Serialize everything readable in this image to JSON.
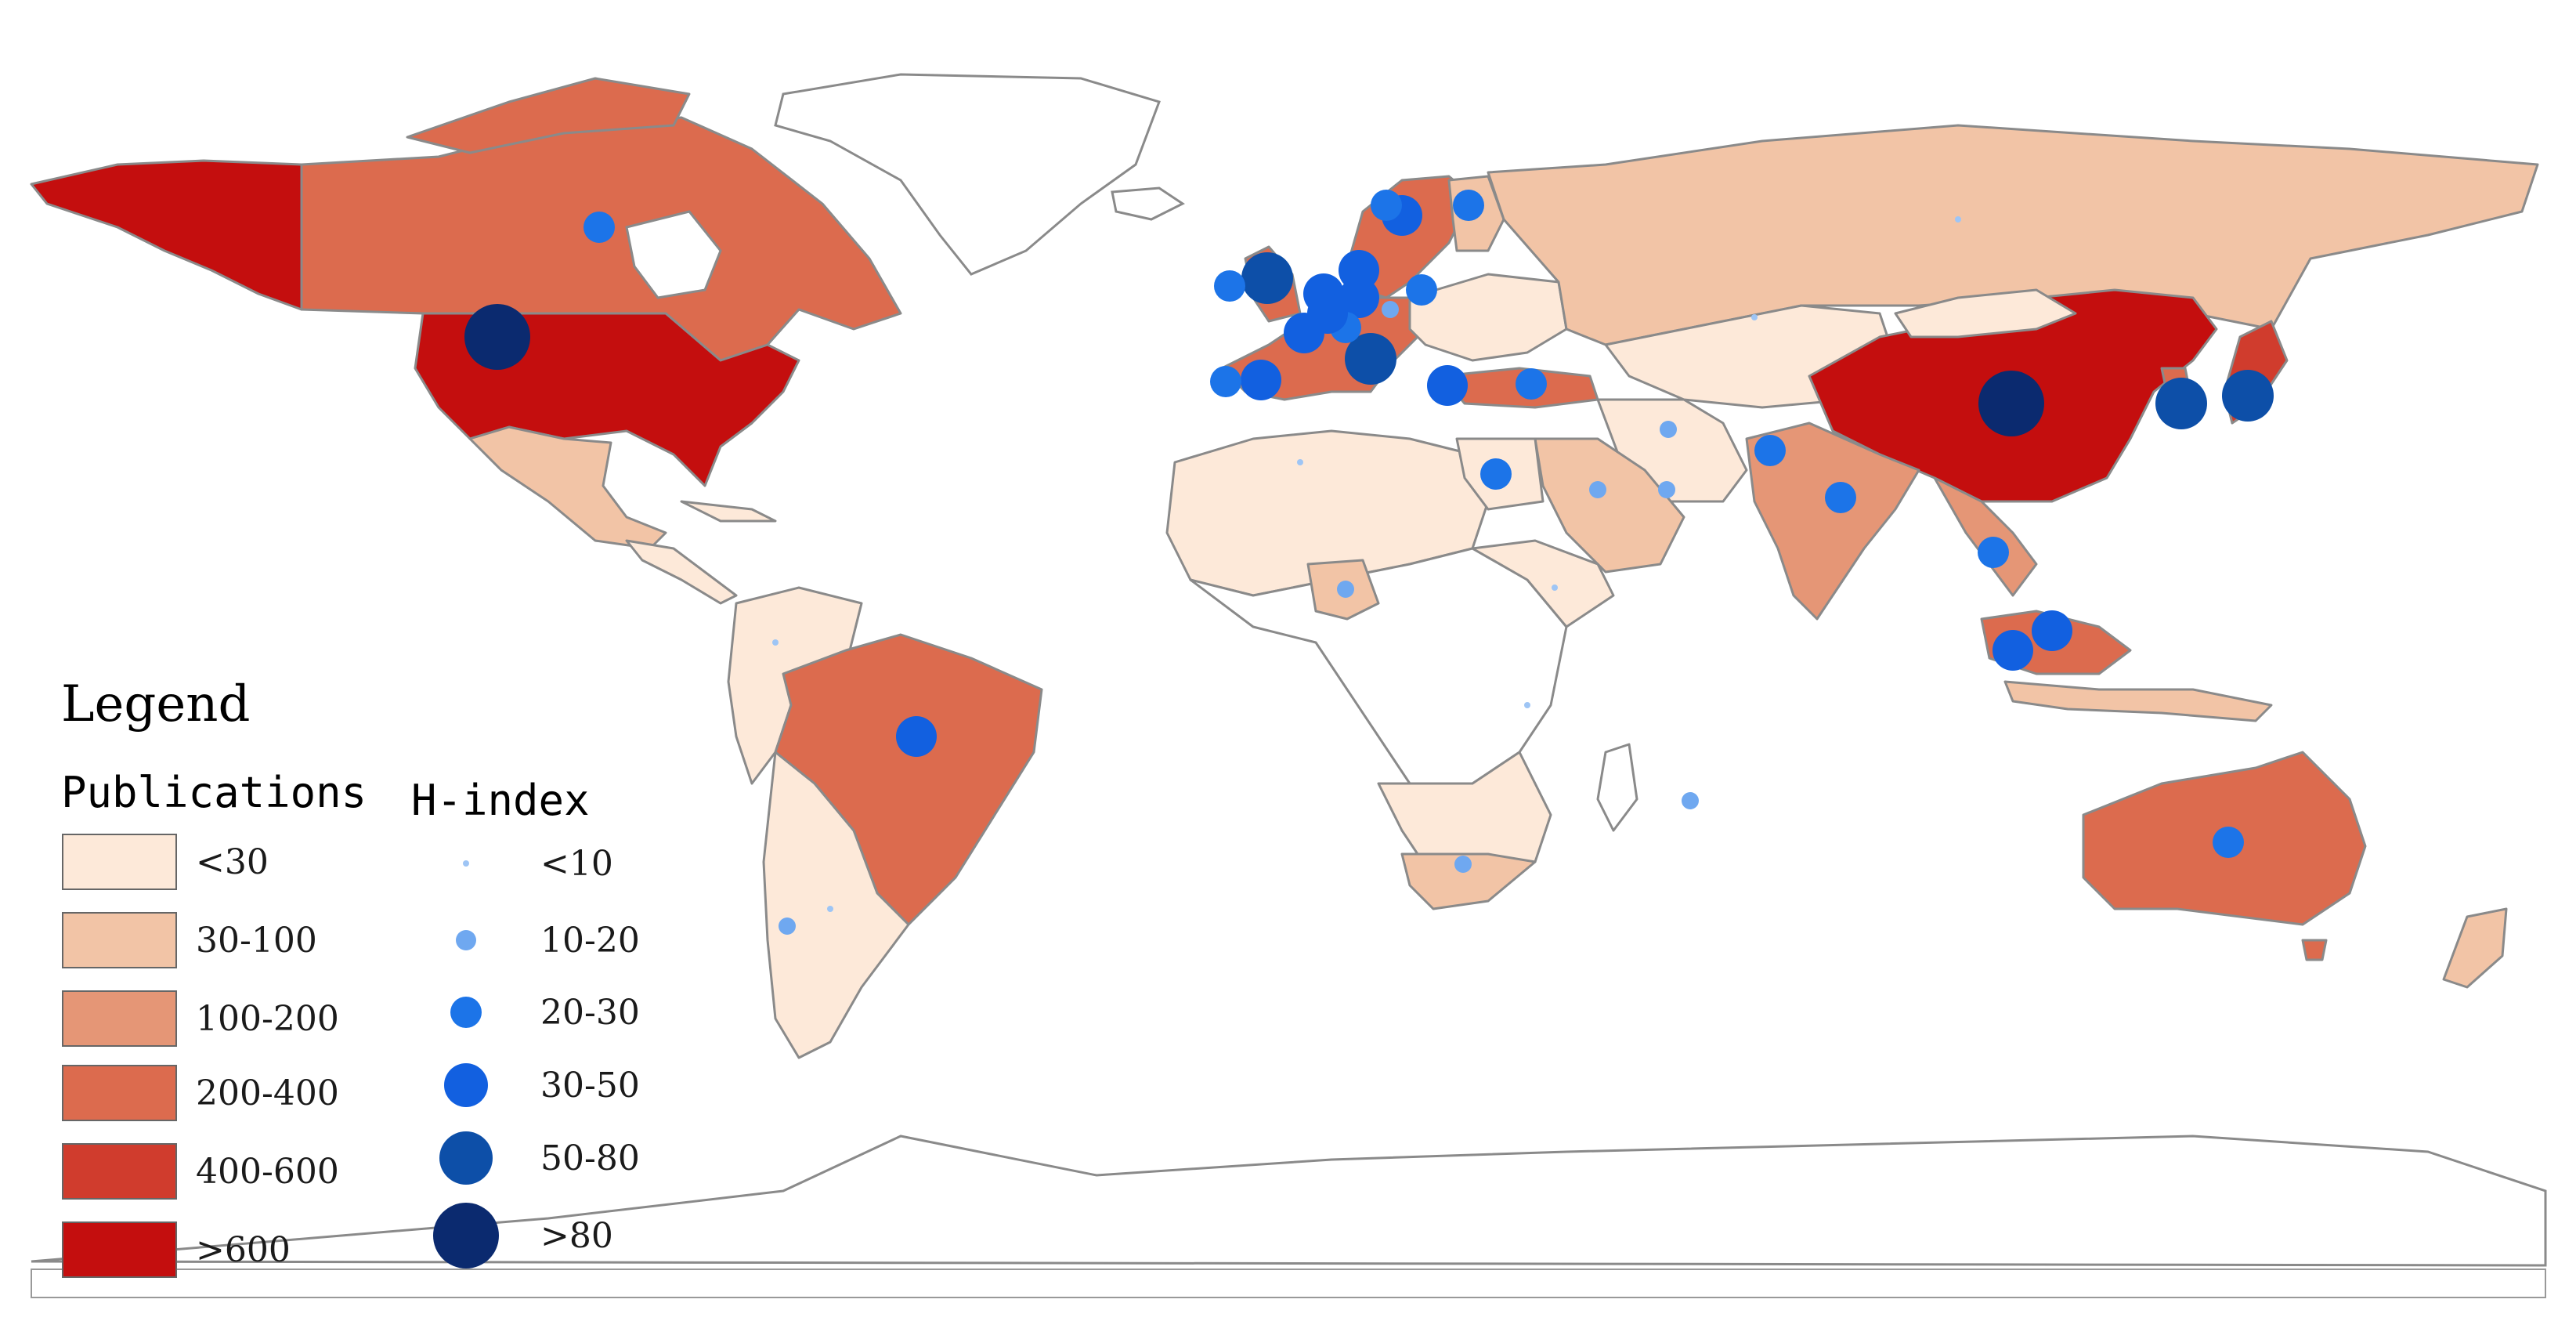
{
  "legend": {
    "title": "Legend",
    "publications_heading": "Publications",
    "hindex_heading": "H-index",
    "publication_classes": [
      {
        "label": "<30",
        "color": "#FDE9D9"
      },
      {
        "label": "30-100",
        "color": "#F2C4A6"
      },
      {
        "label": "100-200",
        "color": "#E59676"
      },
      {
        "label": "200-400",
        "color": "#DC6B4E"
      },
      {
        "label": "400-600",
        "color": "#D03C2D"
      },
      {
        "label": ">600",
        "color": "#C40E0E"
      }
    ],
    "hindex_classes": [
      {
        "label": "<10",
        "color": "#9EC5F5"
      },
      {
        "label": "10-20",
        "color": "#6FA8F0"
      },
      {
        "label": "20-30",
        "color": "#1C74E8"
      },
      {
        "label": "30-50",
        "color": "#1260E0"
      },
      {
        "label": "50-80",
        "color": "#0D4FA8"
      },
      {
        "label": ">80",
        "color": "#0B2A6F"
      }
    ]
  },
  "map_data": {
    "countries": [
      {
        "name": "USA",
        "publication_class": ">600"
      },
      {
        "name": "Canada",
        "publication_class": "200-400"
      },
      {
        "name": "Alaska",
        "publication_class": ">600"
      },
      {
        "name": "Mexico",
        "publication_class": "30-100"
      },
      {
        "name": "Brazil",
        "publication_class": "200-400"
      },
      {
        "name": "Russia",
        "publication_class": "30-100"
      },
      {
        "name": "China",
        "publication_class": ">600"
      },
      {
        "name": "India",
        "publication_class": "100-200"
      },
      {
        "name": "Australia",
        "publication_class": "200-400"
      },
      {
        "name": "South Africa",
        "publication_class": "30-100"
      },
      {
        "name": "Saudi Arabia",
        "publication_class": "30-100"
      },
      {
        "name": "Iran",
        "publication_class": "<30"
      },
      {
        "name": "Turkey",
        "publication_class": "200-400"
      },
      {
        "name": "Egypt",
        "publication_class": "<30"
      },
      {
        "name": "Nigeria",
        "publication_class": "30-100"
      },
      {
        "name": "Japan",
        "publication_class": "400-600"
      },
      {
        "name": "Malaysia",
        "publication_class": "200-400"
      },
      {
        "name": "Sweden",
        "publication_class": "200-400"
      },
      {
        "name": "Europe West",
        "publication_class": "200-400"
      }
    ],
    "hindex_points": [
      {
        "name": "USA",
        "class": ">80"
      },
      {
        "name": "China",
        "class": ">80"
      },
      {
        "name": "UK",
        "class": "50-80"
      },
      {
        "name": "Italy",
        "class": "50-80"
      },
      {
        "name": "South Korea",
        "class": "50-80"
      },
      {
        "name": "Japan",
        "class": "50-80"
      },
      {
        "name": "Canada",
        "class": "20-30"
      },
      {
        "name": "Brazil",
        "class": "30-50"
      },
      {
        "name": "Australia",
        "class": "20-30"
      },
      {
        "name": "India",
        "class": "20-30"
      },
      {
        "name": "Malaysia",
        "class": "30-50"
      },
      {
        "name": "Singapore",
        "class": "30-50"
      },
      {
        "name": "Thailand",
        "class": "20-30"
      },
      {
        "name": "Pakistan",
        "class": "20-30"
      },
      {
        "name": "Egypt",
        "class": "20-30"
      },
      {
        "name": "Turkey",
        "class": "20-30"
      },
      {
        "name": "Greece",
        "class": "30-50"
      },
      {
        "name": "Spain",
        "class": "30-50"
      },
      {
        "name": "Portugal",
        "class": "20-30"
      },
      {
        "name": "France",
        "class": "30-50"
      },
      {
        "name": "Germany",
        "class": "30-50"
      },
      {
        "name": "Netherlands",
        "class": "30-50"
      },
      {
        "name": "Denmark",
        "class": "30-50"
      },
      {
        "name": "Sweden",
        "class": "30-50"
      },
      {
        "name": "Norway",
        "class": "20-30"
      },
      {
        "name": "Finland",
        "class": "20-30"
      },
      {
        "name": "Ireland",
        "class": "20-30"
      },
      {
        "name": "Poland",
        "class": "20-30"
      },
      {
        "name": "Switzerland",
        "class": "20-30"
      },
      {
        "name": "Belgium",
        "class": "30-50"
      },
      {
        "name": "Austria",
        "class": "10-20"
      },
      {
        "name": "Saudi Arabia",
        "class": "10-20"
      },
      {
        "name": "Iran",
        "class": "10-20"
      },
      {
        "name": "UAE",
        "class": "10-20"
      },
      {
        "name": "Nigeria",
        "class": "10-20"
      },
      {
        "name": "South Africa",
        "class": "10-20"
      },
      {
        "name": "Chile",
        "class": "10-20"
      },
      {
        "name": "Mauritius",
        "class": "10-20"
      },
      {
        "name": "Argentina",
        "class": "<10"
      },
      {
        "name": "Colombia",
        "class": "<10"
      },
      {
        "name": "Kazakhstan",
        "class": "<10"
      },
      {
        "name": "Russia",
        "class": "<10"
      },
      {
        "name": "Algeria",
        "class": "<10"
      },
      {
        "name": "Ethiopia",
        "class": "<10"
      },
      {
        "name": "Kenya",
        "class": "<10"
      }
    ]
  }
}
